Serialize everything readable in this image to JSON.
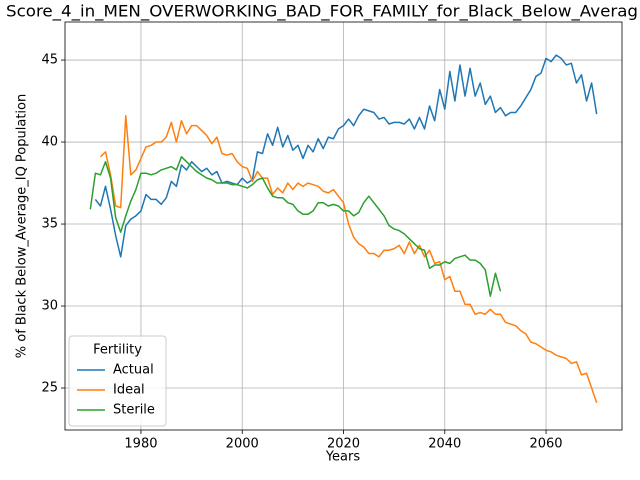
{
  "chart_data": {
    "type": "line",
    "title": "Score_4_in_MEN_OVERWORKING_BAD_FOR_FAMILY_for_Black_Below_Averag",
    "xlabel": "Years",
    "ylabel": "% of Black Below_Average_IQ Population",
    "legend_title": "Fertility",
    "legend": "lower left",
    "grid": true,
    "xlim": [
      1965,
      2075
    ],
    "xticks": [
      1980,
      2000,
      2020,
      2040,
      2060
    ],
    "ylim": [
      22.44,
      47.32
    ],
    "yticks": [
      25,
      30,
      35,
      40,
      45
    ],
    "x": [
      1970,
      1971,
      1972,
      1973,
      1974,
      1975,
      1976,
      1977,
      1978,
      1979,
      1980,
      1981,
      1982,
      1983,
      1984,
      1985,
      1986,
      1987,
      1988,
      1989,
      1990,
      1991,
      1992,
      1993,
      1994,
      1995,
      1996,
      1997,
      1998,
      1999,
      2000,
      2001,
      2002,
      2003,
      2004,
      2005,
      2006,
      2007,
      2008,
      2009,
      2010,
      2011,
      2012,
      2013,
      2014,
      2015,
      2016,
      2017,
      2018,
      2019,
      2020,
      2021,
      2022,
      2023,
      2024,
      2025,
      2026,
      2027,
      2028,
      2029,
      2030,
      2031,
      2032,
      2033,
      2034,
      2035,
      2036,
      2037,
      2038,
      2039,
      2040,
      2041,
      2042,
      2043,
      2044,
      2045,
      2046,
      2047,
      2048,
      2049,
      2050,
      2051,
      2052,
      2053,
      2054,
      2055,
      2056,
      2057,
      2058,
      2059,
      2060,
      2061,
      2062,
      2063,
      2064,
      2065,
      2066,
      2067,
      2068,
      2069,
      2070
    ],
    "series": [
      {
        "name": "Actual",
        "color": "#1f77b4",
        "values": [
          null,
          36.5,
          36.1,
          37.3,
          35.9,
          34.3,
          33.0,
          34.9,
          35.3,
          35.5,
          35.8,
          36.8,
          36.5,
          36.5,
          36.2,
          36.6,
          37.6,
          37.3,
          38.6,
          38.3,
          38.8,
          38.5,
          38.2,
          38.4,
          38.0,
          38.2,
          37.5,
          37.6,
          37.5,
          37.4,
          37.8,
          37.5,
          37.7,
          39.4,
          39.3,
          40.5,
          39.8,
          40.9,
          39.7,
          40.4,
          39.5,
          39.8,
          39.0,
          39.8,
          39.4,
          40.2,
          39.6,
          40.3,
          40.2,
          40.8,
          41.0,
          41.4,
          41.0,
          41.6,
          42.0,
          41.9,
          41.8,
          41.4,
          41.5,
          41.1,
          41.2,
          41.2,
          41.1,
          41.4,
          40.8,
          41.5,
          40.8,
          42.2,
          41.3,
          43.2,
          42.0,
          44.3,
          42.5,
          44.7,
          42.8,
          44.5,
          42.8,
          43.6,
          42.3,
          42.8,
          41.8,
          42.1,
          41.6,
          41.8,
          41.8,
          42.2,
          42.7,
          43.2,
          44.0,
          44.2,
          45.1,
          44.9,
          45.3,
          45.1,
          44.7,
          44.8,
          43.6,
          44.1,
          42.5,
          43.6,
          41.7
        ]
      },
      {
        "name": "Ideal",
        "color": "#ff7f0e",
        "values": [
          null,
          null,
          39.1,
          39.4,
          38.0,
          36.1,
          36.0,
          41.6,
          38.0,
          38.3,
          39.0,
          39.7,
          39.8,
          40.0,
          40.0,
          40.3,
          41.2,
          40.0,
          41.3,
          40.5,
          41.0,
          41.0,
          40.7,
          40.4,
          39.9,
          40.3,
          39.3,
          39.2,
          39.3,
          38.8,
          38.5,
          38.4,
          37.6,
          38.2,
          37.8,
          37.8,
          36.8,
          37.2,
          36.9,
          37.5,
          37.1,
          37.5,
          37.3,
          37.5,
          37.4,
          37.3,
          37.0,
          36.9,
          37.1,
          36.7,
          36.3,
          35.0,
          34.2,
          33.8,
          33.6,
          33.2,
          33.2,
          33.0,
          33.4,
          33.4,
          33.5,
          33.7,
          33.2,
          33.9,
          33.2,
          33.7,
          33.0,
          33.4,
          32.6,
          32.7,
          31.6,
          31.8,
          30.9,
          30.9,
          30.1,
          30.1,
          29.5,
          29.6,
          29.5,
          29.8,
          29.5,
          29.5,
          29.0,
          28.9,
          28.8,
          28.5,
          28.3,
          27.8,
          27.7,
          27.5,
          27.3,
          27.2,
          27.0,
          26.9,
          26.8,
          26.5,
          26.6,
          25.8,
          25.9,
          25.0,
          24.1
        ]
      },
      {
        "name": "Sterile",
        "color": "#2ca02c",
        "values": [
          35.9,
          38.1,
          38.0,
          38.8,
          37.8,
          35.4,
          34.5,
          35.5,
          36.4,
          37.1,
          38.1,
          38.1,
          38.0,
          38.1,
          38.3,
          38.4,
          38.5,
          38.3,
          39.1,
          38.8,
          38.5,
          38.2,
          38.0,
          37.8,
          37.7,
          37.5,
          37.5,
          37.5,
          37.4,
          37.4,
          37.3,
          37.2,
          37.4,
          37.7,
          37.8,
          37.2,
          36.7,
          36.6,
          36.6,
          36.3,
          36.2,
          35.8,
          35.6,
          35.6,
          35.8,
          36.3,
          36.3,
          36.1,
          36.2,
          36.1,
          35.8,
          35.8,
          35.5,
          35.7,
          36.3,
          36.7,
          36.3,
          35.9,
          35.5,
          34.9,
          34.7,
          34.6,
          34.4,
          34.1,
          33.8,
          33.5,
          33.4,
          32.3,
          32.5,
          32.5,
          32.7,
          32.6,
          32.9,
          33.0,
          33.1,
          32.8,
          32.8,
          32.6,
          32.2,
          30.6,
          32.0,
          30.9,
          null,
          null,
          null,
          null,
          null,
          null,
          null,
          null,
          null,
          null,
          null,
          null,
          null,
          null,
          null,
          null,
          null,
          null,
          null
        ]
      }
    ]
  }
}
